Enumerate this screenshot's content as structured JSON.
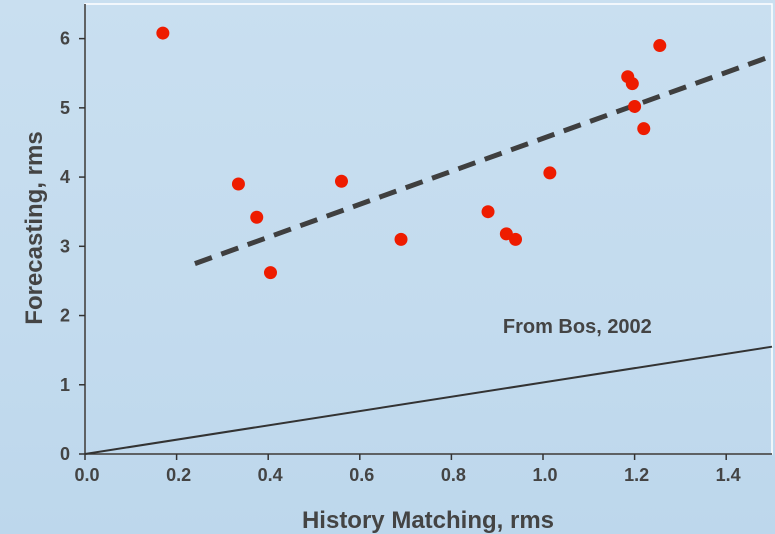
{
  "chart_data": {
    "type": "scatter",
    "title": "",
    "xlabel": "History Matching, rms",
    "ylabel": "Forecasting, rms",
    "xlim": [
      0.0,
      1.5
    ],
    "ylim": [
      0,
      6.5
    ],
    "x_ticks": [
      "0.0",
      "0.2",
      "0.4",
      "0.6",
      "0.8",
      "1.0",
      "1.2",
      "1.4"
    ],
    "y_ticks": [
      "0",
      "1",
      "2",
      "3",
      "4",
      "5",
      "6"
    ],
    "grid": false,
    "annotation": "From Bos, 2002",
    "series": [
      {
        "type": "scatter",
        "color": "#ee1c00",
        "points": [
          {
            "x": 0.17,
            "y": 6.08
          },
          {
            "x": 0.335,
            "y": 3.9
          },
          {
            "x": 0.375,
            "y": 3.42
          },
          {
            "x": 0.405,
            "y": 2.62
          },
          {
            "x": 0.56,
            "y": 3.94
          },
          {
            "x": 0.69,
            "y": 3.1
          },
          {
            "x": 0.88,
            "y": 3.5
          },
          {
            "x": 0.92,
            "y": 3.18
          },
          {
            "x": 0.94,
            "y": 3.1
          },
          {
            "x": 1.015,
            "y": 4.06
          },
          {
            "x": 1.185,
            "y": 5.45
          },
          {
            "x": 1.195,
            "y": 5.35
          },
          {
            "x": 1.2,
            "y": 5.02
          },
          {
            "x": 1.22,
            "y": 4.7
          },
          {
            "x": 1.255,
            "y": 5.9
          }
        ]
      },
      {
        "type": "line",
        "style": "dashed",
        "color": "#3f3f3f",
        "x": [
          0.24,
          1.5
        ],
        "y": [
          2.75,
          5.75
        ]
      },
      {
        "type": "line",
        "style": "solid",
        "color": "#333333",
        "x": [
          0.0,
          1.5
        ],
        "y": [
          0.0,
          1.55
        ]
      }
    ]
  }
}
